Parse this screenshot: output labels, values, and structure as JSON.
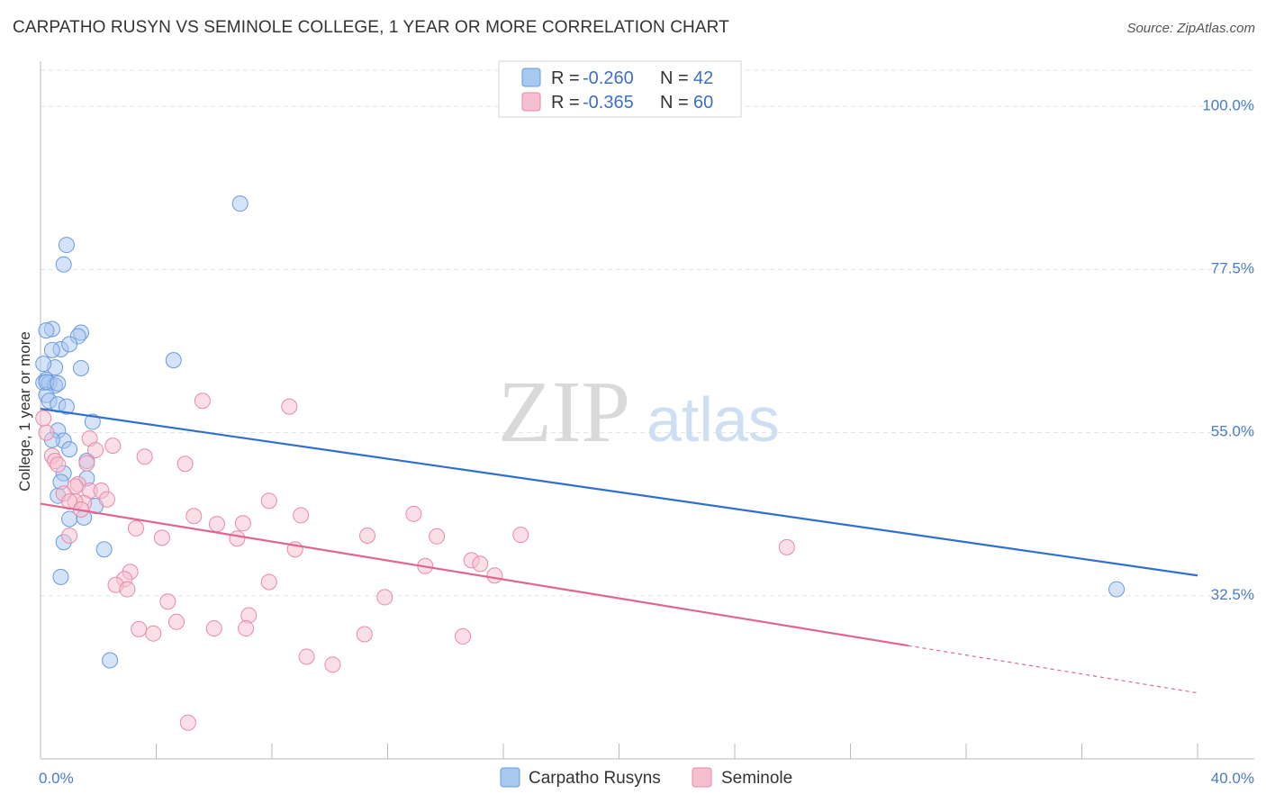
{
  "title": "CARPATHO RUSYN VS SEMINOLE COLLEGE, 1 YEAR OR MORE CORRELATION CHART",
  "source": "Source: ZipAtlas.com",
  "watermark": {
    "zip": "ZIP",
    "atlas": "atlas"
  },
  "colors": {
    "blue_fill": "#a9c8ef",
    "blue_stroke": "#6a9bdc",
    "blue_line": "#2f6fcf",
    "pink_fill": "#f6bfd0",
    "pink_stroke": "#e88aa9",
    "pink_line": "#e06690",
    "grid": "#e3e3e3",
    "axis_label": "#4a7cc7"
  },
  "legend": {
    "rows": [
      {
        "r_label": "R =",
        "r_value": "-0.260",
        "n_label": "N =",
        "n_value": "42"
      },
      {
        "r_label": "R =",
        "r_value": "-0.365",
        "n_label": "N =",
        "n_value": "60"
      }
    ]
  },
  "bottom_legend": [
    "Carpatho Rusyns",
    "Seminole"
  ],
  "chart_data": {
    "type": "scatter",
    "title": "CARPATHO RUSYN VS SEMINOLE COLLEGE, 1 YEAR OR MORE CORRELATION CHART",
    "xlabel": "",
    "ylabel": "College, 1 year or more",
    "xlim": [
      0,
      40
    ],
    "ylim": [
      10,
      105
    ],
    "x_tick_labels": [
      "0.0%",
      "40.0%"
    ],
    "y_ticks": [
      32.5,
      55.0,
      77.5,
      100.0
    ],
    "y_tick_labels": [
      "32.5%",
      "55.0%",
      "77.5%",
      "100.0%"
    ],
    "grid": true,
    "legend_position": "top-center",
    "series": [
      {
        "name": "Carpatho Rusyns",
        "r": -0.26,
        "n": 42,
        "trend": {
          "x0": 0,
          "y0": 58.3,
          "x1": 40,
          "y1": 35.3,
          "dash_from": null
        },
        "points": [
          [
            6.9,
            86.6
          ],
          [
            0.9,
            80.9
          ],
          [
            0.8,
            78.2
          ],
          [
            0.4,
            69.3
          ],
          [
            0.2,
            69.1
          ],
          [
            1.4,
            68.8
          ],
          [
            1.3,
            68.3
          ],
          [
            0.7,
            66.5
          ],
          [
            0.4,
            66.4
          ],
          [
            1.0,
            67.2
          ],
          [
            4.6,
            65.0
          ],
          [
            0.5,
            64.0
          ],
          [
            1.4,
            63.9
          ],
          [
            0.1,
            64.5
          ],
          [
            0.2,
            62.3
          ],
          [
            0.1,
            61.9
          ],
          [
            0.3,
            61.9
          ],
          [
            0.5,
            61.5
          ],
          [
            0.2,
            60.2
          ],
          [
            0.3,
            59.4
          ],
          [
            0.6,
            58.9
          ],
          [
            0.9,
            58.6
          ],
          [
            1.8,
            56.5
          ],
          [
            0.6,
            55.3
          ],
          [
            0.8,
            53.9
          ],
          [
            0.4,
            54.0
          ],
          [
            1.0,
            52.7
          ],
          [
            1.6,
            51.1
          ],
          [
            0.8,
            49.4
          ],
          [
            1.6,
            48.7
          ],
          [
            0.7,
            48.2
          ],
          [
            0.6,
            46.3
          ],
          [
            1.9,
            44.9
          ],
          [
            1.5,
            43.3
          ],
          [
            1.0,
            43.1
          ],
          [
            0.8,
            39.9
          ],
          [
            2.2,
            38.9
          ],
          [
            0.7,
            35.1
          ],
          [
            37.2,
            33.4
          ],
          [
            2.4,
            23.6
          ],
          [
            0.2,
            62.0
          ],
          [
            0.6,
            61.8
          ]
        ]
      },
      {
        "name": "Seminole",
        "r": -0.365,
        "n": 60,
        "trend": {
          "x0": 0,
          "y0": 45.2,
          "x1": 40,
          "y1": 19.1,
          "dash_from": 30.0
        },
        "points": [
          [
            5.6,
            59.4
          ],
          [
            8.6,
            58.6
          ],
          [
            0.2,
            55.0
          ],
          [
            1.7,
            54.2
          ],
          [
            2.5,
            53.2
          ],
          [
            1.9,
            52.6
          ],
          [
            3.6,
            51.7
          ],
          [
            0.4,
            51.8
          ],
          [
            0.5,
            51.1
          ],
          [
            0.6,
            50.6
          ],
          [
            1.6,
            50.8
          ],
          [
            5.0,
            50.7
          ],
          [
            1.3,
            47.9
          ],
          [
            1.2,
            47.6
          ],
          [
            1.7,
            47.0
          ],
          [
            2.1,
            47.0
          ],
          [
            0.8,
            46.6
          ],
          [
            2.3,
            45.8
          ],
          [
            7.9,
            45.6
          ],
          [
            1.5,
            45.3
          ],
          [
            1.2,
            45.5
          ],
          [
            1.0,
            45.5
          ],
          [
            1.4,
            44.4
          ],
          [
            5.3,
            43.5
          ],
          [
            9.0,
            43.6
          ],
          [
            12.9,
            43.8
          ],
          [
            6.1,
            42.4
          ],
          [
            7.0,
            42.5
          ],
          [
            3.3,
            41.8
          ],
          [
            1.0,
            40.8
          ],
          [
            4.2,
            40.5
          ],
          [
            6.8,
            40.4
          ],
          [
            11.3,
            40.8
          ],
          [
            13.7,
            40.7
          ],
          [
            16.6,
            40.9
          ],
          [
            8.8,
            38.9
          ],
          [
            25.8,
            39.2
          ],
          [
            14.9,
            37.4
          ],
          [
            13.3,
            36.6
          ],
          [
            15.2,
            36.9
          ],
          [
            3.1,
            35.8
          ],
          [
            2.9,
            34.8
          ],
          [
            2.6,
            34.0
          ],
          [
            7.9,
            34.4
          ],
          [
            3.0,
            33.4
          ],
          [
            15.7,
            35.3
          ],
          [
            11.9,
            32.3
          ],
          [
            4.4,
            31.7
          ],
          [
            7.2,
            29.8
          ],
          [
            4.7,
            28.9
          ],
          [
            3.4,
            27.9
          ],
          [
            6.0,
            28.0
          ],
          [
            7.1,
            28.0
          ],
          [
            3.9,
            27.3
          ],
          [
            11.2,
            27.2
          ],
          [
            14.6,
            26.9
          ],
          [
            9.2,
            24.1
          ],
          [
            10.1,
            23.0
          ],
          [
            5.1,
            15.0
          ],
          [
            0.1,
            57.0
          ]
        ]
      }
    ]
  }
}
